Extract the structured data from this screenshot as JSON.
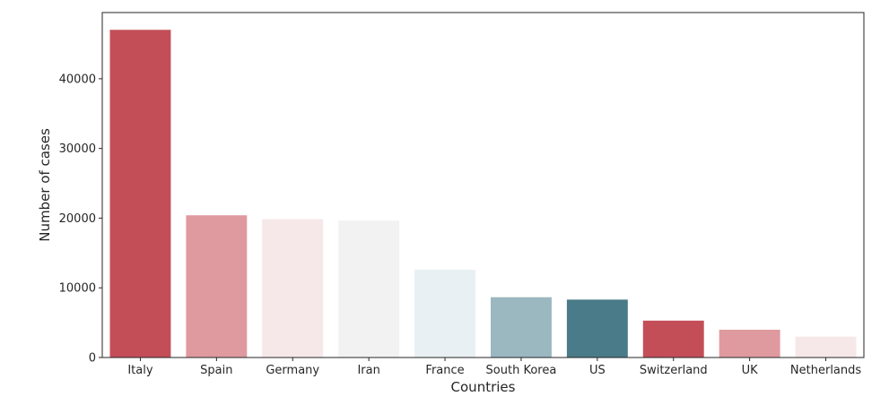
{
  "chart_data": {
    "type": "bar",
    "title": "",
    "xlabel": "Countries",
    "ylabel": "Number of cases",
    "categories": [
      "Italy",
      "Spain",
      "Germany",
      "Iran",
      "France",
      "South Korea",
      "US",
      "Switzerland",
      "UK",
      "Netherlands"
    ],
    "values": [
      47021,
      20410,
      19848,
      19644,
      12612,
      8652,
      8310,
      5294,
      3983,
      2994
    ],
    "colors": [
      "#c44e58",
      "#df9a9f",
      "#f6e8e8",
      "#f2f2f2",
      "#e9f0f3",
      "#9bb7bf",
      "#4a7b89",
      "#c44e58",
      "#df9a9f",
      "#f6e8e8"
    ],
    "ylim": [
      0,
      49500
    ],
    "yticks": [
      0,
      10000,
      20000,
      30000,
      40000
    ],
    "grid": false,
    "legend": "none"
  }
}
